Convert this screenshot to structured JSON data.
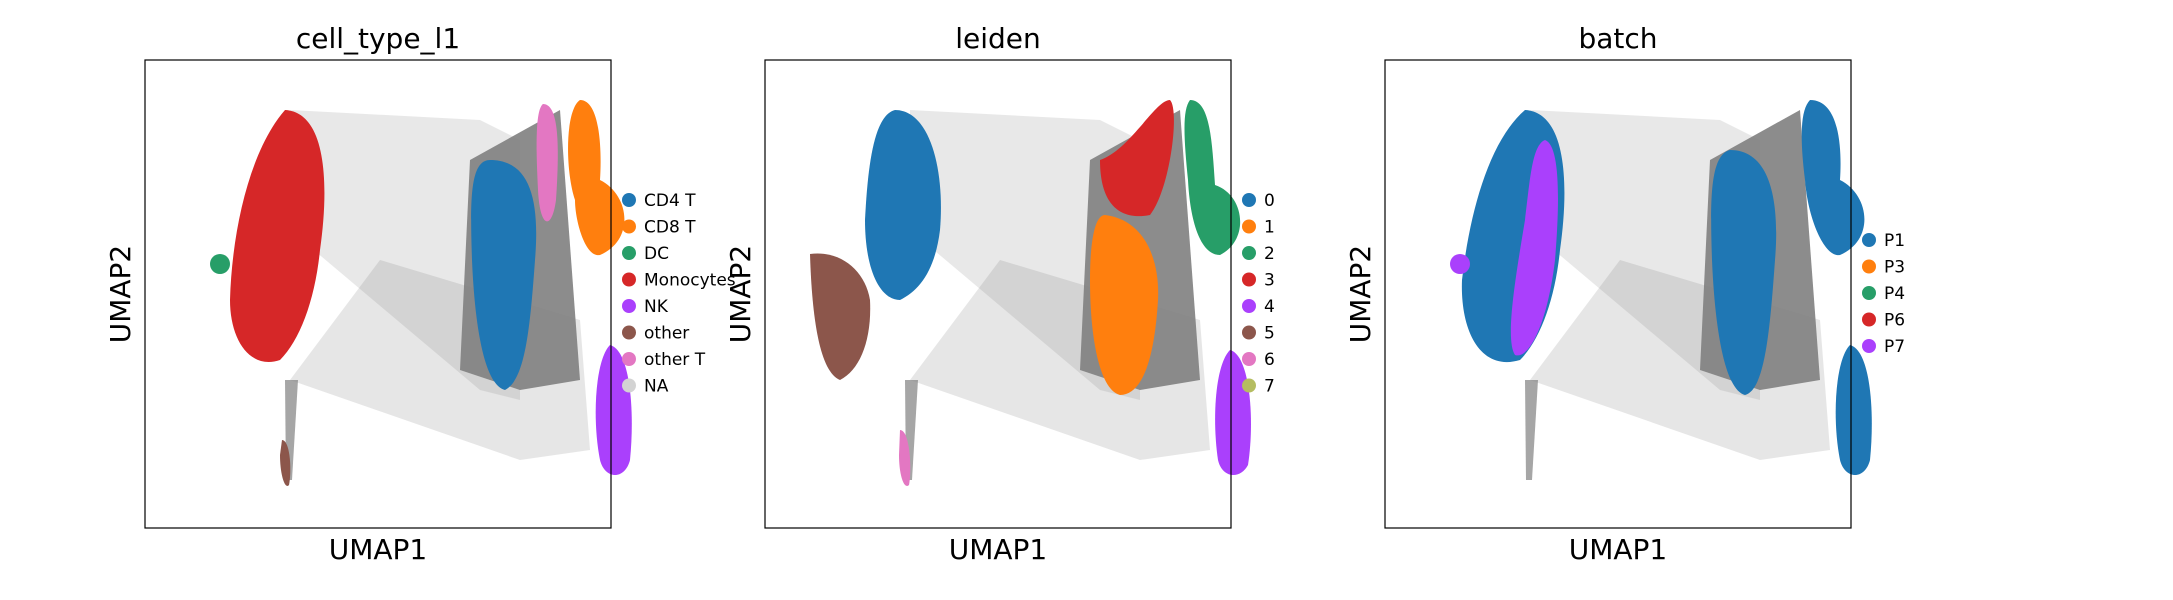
{
  "colors": {
    "cat10_blue": "#1f77b4",
    "cat10_orange": "#ff7f0e",
    "cat10_green": "#279e68",
    "cat10_red": "#d62728",
    "cat10_purple": "#aa40fc",
    "cat10_brown": "#8c564b",
    "cat10_pink": "#e377c2",
    "cat10_olive": "#b5bd61",
    "na_grey": "#d3d3d3",
    "edge_grey": "#808080"
  },
  "chart_data": [
    {
      "type": "scatter",
      "title": "cell_type_l1",
      "xlabel": "UMAP1",
      "ylabel": "UMAP2",
      "ticks": "none",
      "legend_position": "right",
      "legend": [
        {
          "label": "CD4 T",
          "color": "#1f77b4"
        },
        {
          "label": "CD8 T",
          "color": "#ff7f0e"
        },
        {
          "label": "DC",
          "color": "#279e68"
        },
        {
          "label": "Monocytes",
          "color": "#d62728"
        },
        {
          "label": "NK",
          "color": "#aa40fc"
        },
        {
          "label": "other",
          "color": "#8c564b"
        },
        {
          "label": "other T",
          "color": "#e377c2"
        },
        {
          "label": "NA",
          "color": "#d3d3d3"
        }
      ],
      "clusters": [
        {
          "label": "Monocytes",
          "color": "#d62728",
          "cx": 0.3,
          "cy": 0.68,
          "rx": 0.1,
          "ry": 0.28
        },
        {
          "label": "DC",
          "color": "#279e68",
          "cx": 0.1,
          "cy": 0.56,
          "rx": 0.03,
          "ry": 0.02
        },
        {
          "label": "CD4 T",
          "color": "#1f77b4",
          "cx": 0.66,
          "cy": 0.52,
          "rx": 0.06,
          "ry": 0.2
        },
        {
          "label": "CD8 T",
          "color": "#ff7f0e",
          "cx": 0.86,
          "cy": 0.68,
          "rx": 0.07,
          "ry": 0.15
        },
        {
          "label": "other T",
          "color": "#e377c2",
          "cx": 0.74,
          "cy": 0.82,
          "rx": 0.025,
          "ry": 0.1
        },
        {
          "label": "NK",
          "color": "#aa40fc",
          "cx": 0.87,
          "cy": 0.24,
          "rx": 0.035,
          "ry": 0.14
        },
        {
          "label": "other",
          "color": "#8c564b",
          "cx": 0.31,
          "cy": 0.13,
          "rx": 0.01,
          "ry": 0.05
        }
      ]
    },
    {
      "type": "scatter",
      "title": "leiden",
      "xlabel": "UMAP1",
      "ylabel": "UMAP2",
      "ticks": "none",
      "legend_position": "right",
      "legend": [
        {
          "label": "0",
          "color": "#1f77b4"
        },
        {
          "label": "1",
          "color": "#ff7f0e"
        },
        {
          "label": "2",
          "color": "#279e68"
        },
        {
          "label": "3",
          "color": "#d62728"
        },
        {
          "label": "4",
          "color": "#aa40fc"
        },
        {
          "label": "5",
          "color": "#8c564b"
        },
        {
          "label": "6",
          "color": "#e377c2"
        },
        {
          "label": "7",
          "color": "#b5bd61"
        }
      ],
      "clusters": [
        {
          "label": "0",
          "color": "#1f77b4",
          "cx": 0.28,
          "cy": 0.72,
          "rx": 0.09,
          "ry": 0.22
        },
        {
          "label": "5",
          "color": "#8c564b",
          "cx": 0.15,
          "cy": 0.46,
          "rx": 0.05,
          "ry": 0.1
        },
        {
          "label": "1",
          "color": "#ff7f0e",
          "cx": 0.66,
          "cy": 0.46,
          "rx": 0.06,
          "ry": 0.2
        },
        {
          "label": "3",
          "color": "#d62728",
          "cx": 0.7,
          "cy": 0.75,
          "rx": 0.07,
          "ry": 0.07
        },
        {
          "label": "2",
          "color": "#279e68",
          "cx": 0.86,
          "cy": 0.75,
          "rx": 0.06,
          "ry": 0.15
        },
        {
          "label": "4",
          "color": "#aa40fc",
          "cx": 0.88,
          "cy": 0.22,
          "rx": 0.035,
          "ry": 0.14
        },
        {
          "label": "6",
          "color": "#e377c2",
          "cx": 0.31,
          "cy": 0.13,
          "rx": 0.01,
          "ry": 0.06
        }
      ]
    },
    {
      "type": "scatter",
      "title": "batch",
      "xlabel": "UMAP1",
      "ylabel": "UMAP2",
      "ticks": "none",
      "legend_position": "right",
      "legend": [
        {
          "label": "P1",
          "color": "#1f77b4"
        },
        {
          "label": "P3",
          "color": "#ff7f0e"
        },
        {
          "label": "P4",
          "color": "#279e68"
        },
        {
          "label": "P6",
          "color": "#d62728"
        },
        {
          "label": "P7",
          "color": "#aa40fc"
        }
      ],
      "clusters": [
        {
          "label": "P1",
          "color": "#1f77b4",
          "cx": 0.26,
          "cy": 0.62,
          "rx": 0.1,
          "ry": 0.26
        },
        {
          "label": "P7",
          "color": "#aa40fc",
          "cx": 0.32,
          "cy": 0.6,
          "rx": 0.04,
          "ry": 0.22
        },
        {
          "label": "P1",
          "color": "#1f77b4",
          "cx": 0.66,
          "cy": 0.55,
          "rx": 0.07,
          "ry": 0.24
        },
        {
          "label": "P1",
          "color": "#1f77b4",
          "cx": 0.86,
          "cy": 0.67,
          "rx": 0.07,
          "ry": 0.16
        },
        {
          "label": "P1",
          "color": "#1f77b4",
          "cx": 0.87,
          "cy": 0.18,
          "rx": 0.03,
          "ry": 0.12
        },
        {
          "label": "P7",
          "color": "#aa40fc",
          "cx": 0.1,
          "cy": 0.56,
          "rx": 0.025,
          "ry": 0.02
        }
      ]
    }
  ]
}
